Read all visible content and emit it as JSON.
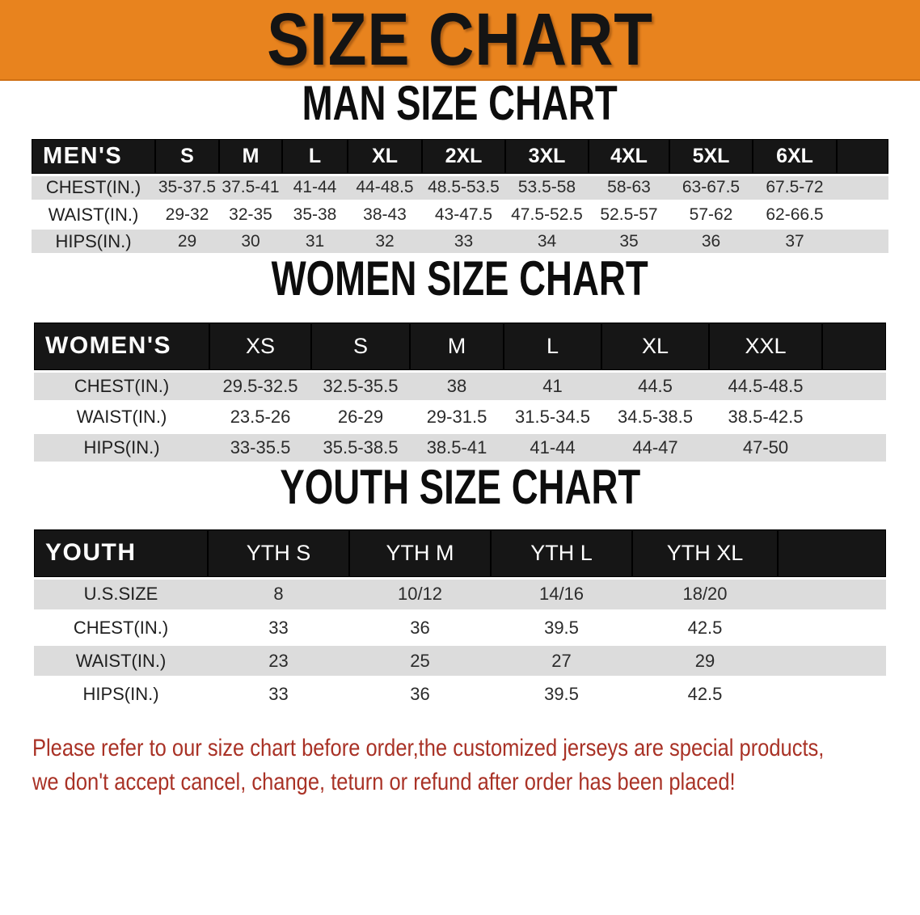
{
  "banner": {
    "title": "SIZE CHART"
  },
  "colors": {
    "banner_bg": "#E8831E",
    "table_header_bg": "#161616",
    "row_stripe": "#DCDCDC",
    "disclaimer_text": "#A93226"
  },
  "sections": [
    {
      "heading": "MAN SIZE CHART",
      "table": {
        "header_label": "MEN'S",
        "columns": [
          "S",
          "M",
          "L",
          "XL",
          "2XL",
          "3XL",
          "4XL",
          "5XL",
          "6XL"
        ],
        "rows": [
          {
            "label": "CHEST(IN.)",
            "values": [
              "35-37.5",
              "37.5-41",
              "41-44",
              "44-48.5",
              "48.5-53.5",
              "53.5-58",
              "58-63",
              "63-67.5",
              "67.5-72"
            ]
          },
          {
            "label": "WAIST(IN.)",
            "values": [
              "29-32",
              "32-35",
              "35-38",
              "38-43",
              "43-47.5",
              "47.5-52.5",
              "52.5-57",
              "57-62",
              "62-66.5"
            ]
          },
          {
            "label": "HIPS(IN.)",
            "values": [
              "29",
              "30",
              "31",
              "32",
              "33",
              "34",
              "35",
              "36",
              "37"
            ]
          }
        ]
      }
    },
    {
      "heading": "WOMEN SIZE CHART",
      "table": {
        "header_label": "WOMEN'S",
        "columns": [
          "XS",
          "S",
          "M",
          "L",
          "XL",
          "XXL"
        ],
        "rows": [
          {
            "label": "CHEST(IN.)",
            "values": [
              "29.5-32.5",
              "32.5-35.5",
              "38",
              "41",
              "44.5",
              "44.5-48.5"
            ]
          },
          {
            "label": "WAIST(IN.)",
            "values": [
              "23.5-26",
              "26-29",
              "29-31.5",
              "31.5-34.5",
              "34.5-38.5",
              "38.5-42.5"
            ]
          },
          {
            "label": "HIPS(IN.)",
            "values": [
              "33-35.5",
              "35.5-38.5",
              "38.5-41",
              "41-44",
              "44-47",
              "47-50"
            ]
          }
        ]
      }
    },
    {
      "heading": "YOUTH SIZE CHART",
      "table": {
        "header_label": "YOUTH",
        "columns": [
          "YTH S",
          "YTH M",
          "YTH L",
          "YTH XL"
        ],
        "rows": [
          {
            "label": "U.S.SIZE",
            "values": [
              "8",
              "10/12",
              "14/16",
              "18/20"
            ]
          },
          {
            "label": "CHEST(IN.)",
            "values": [
              "33",
              "36",
              "39.5",
              "42.5"
            ]
          },
          {
            "label": "WAIST(IN.)",
            "values": [
              "23",
              "25",
              "27",
              "29"
            ]
          },
          {
            "label": "HIPS(IN.)",
            "values": [
              "33",
              "36",
              "39.5",
              "42.5"
            ]
          }
        ]
      }
    }
  ],
  "disclaimer": {
    "line1": "Please refer to our size chart before order,the customized jerseys are special products,",
    "line2": "we don't accept cancel, change, teturn or refund after order has been placed!"
  }
}
